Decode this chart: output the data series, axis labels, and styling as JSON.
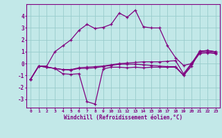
{
  "xlabel": "Windchill (Refroidissement éolien,°C)",
  "background_color": "#c2e8e8",
  "line_color": "#800080",
  "grid_color": "#99cccc",
  "x_values": [
    0,
    1,
    2,
    3,
    4,
    5,
    6,
    7,
    8,
    9,
    10,
    11,
    12,
    13,
    14,
    15,
    16,
    17,
    18,
    19,
    20,
    21,
    22,
    23
  ],
  "line1": [
    -1.3,
    -0.2,
    -0.2,
    1.0,
    1.5,
    2.0,
    2.8,
    3.3,
    2.95,
    3.05,
    3.3,
    4.25,
    3.9,
    4.5,
    3.1,
    3.0,
    3.0,
    1.5,
    0.5,
    -0.15,
    0.0,
    1.05,
    1.1,
    1.0
  ],
  "line2": [
    -1.3,
    -0.2,
    -0.3,
    -0.4,
    -0.85,
    -0.9,
    -0.85,
    -3.2,
    -3.4,
    -0.45,
    -0.3,
    -0.3,
    -0.35,
    -0.3,
    -0.35,
    -0.3,
    -0.3,
    -0.3,
    -0.3,
    -1.0,
    -0.2,
    1.05,
    1.1,
    1.0
  ],
  "line3": [
    -1.3,
    -0.2,
    -0.3,
    -0.4,
    -0.5,
    -0.55,
    -0.4,
    -0.4,
    -0.35,
    -0.25,
    -0.15,
    -0.05,
    -0.05,
    -0.05,
    -0.1,
    -0.15,
    -0.2,
    -0.25,
    -0.25,
    -0.95,
    -0.05,
    0.85,
    0.9,
    0.85
  ],
  "line4": [
    -1.3,
    -0.2,
    -0.3,
    -0.4,
    -0.5,
    -0.5,
    -0.35,
    -0.3,
    -0.25,
    -0.2,
    -0.1,
    0.0,
    0.05,
    0.1,
    0.15,
    0.15,
    0.15,
    0.2,
    0.25,
    -0.85,
    0.05,
    0.95,
    1.0,
    0.9
  ],
  "ylim": [
    -3.7,
    5.0
  ],
  "yticks": [
    -3,
    -2,
    -1,
    0,
    1,
    2,
    3,
    4
  ],
  "xlim": [
    -0.5,
    23.5
  ]
}
